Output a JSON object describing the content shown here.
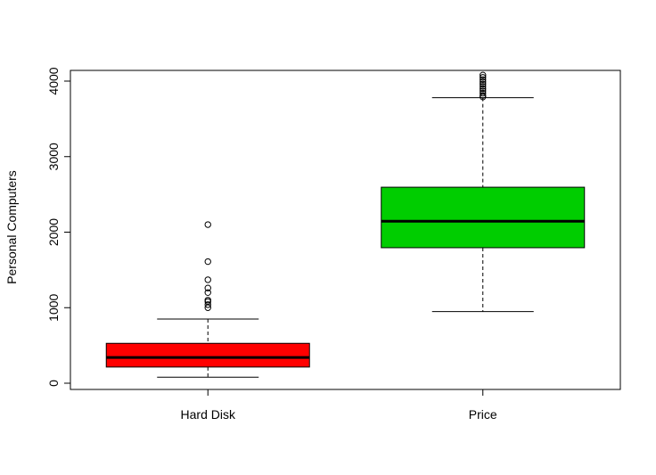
{
  "chart_data": {
    "type": "boxplot",
    "title": "",
    "xlabel": "",
    "ylabel": "Personal Computers",
    "ylim": [
      0,
      4100
    ],
    "yticks": [
      0,
      1000,
      2000,
      3000,
      4000
    ],
    "grid": false,
    "categories": [
      "Hard Disk",
      "Price"
    ],
    "boxes": [
      {
        "category": "Hard Disk",
        "color": "#ff0000",
        "whisker_low": 80,
        "q1": 214,
        "median": 340,
        "q3": 528,
        "whisker_high": 850,
        "outliers": [
          1000,
          1040,
          1080,
          1100,
          1200,
          1260,
          1370,
          1610,
          2100
        ]
      },
      {
        "category": "Price",
        "color": "#00cd00",
        "whisker_low": 949,
        "q1": 1794,
        "median": 2144,
        "q3": 2595,
        "whisker_high": 3780,
        "outliers": [
          3790,
          3810,
          3840,
          3870,
          3900,
          3930,
          3960,
          3990,
          4020,
          4050,
          4080
        ]
      }
    ]
  }
}
